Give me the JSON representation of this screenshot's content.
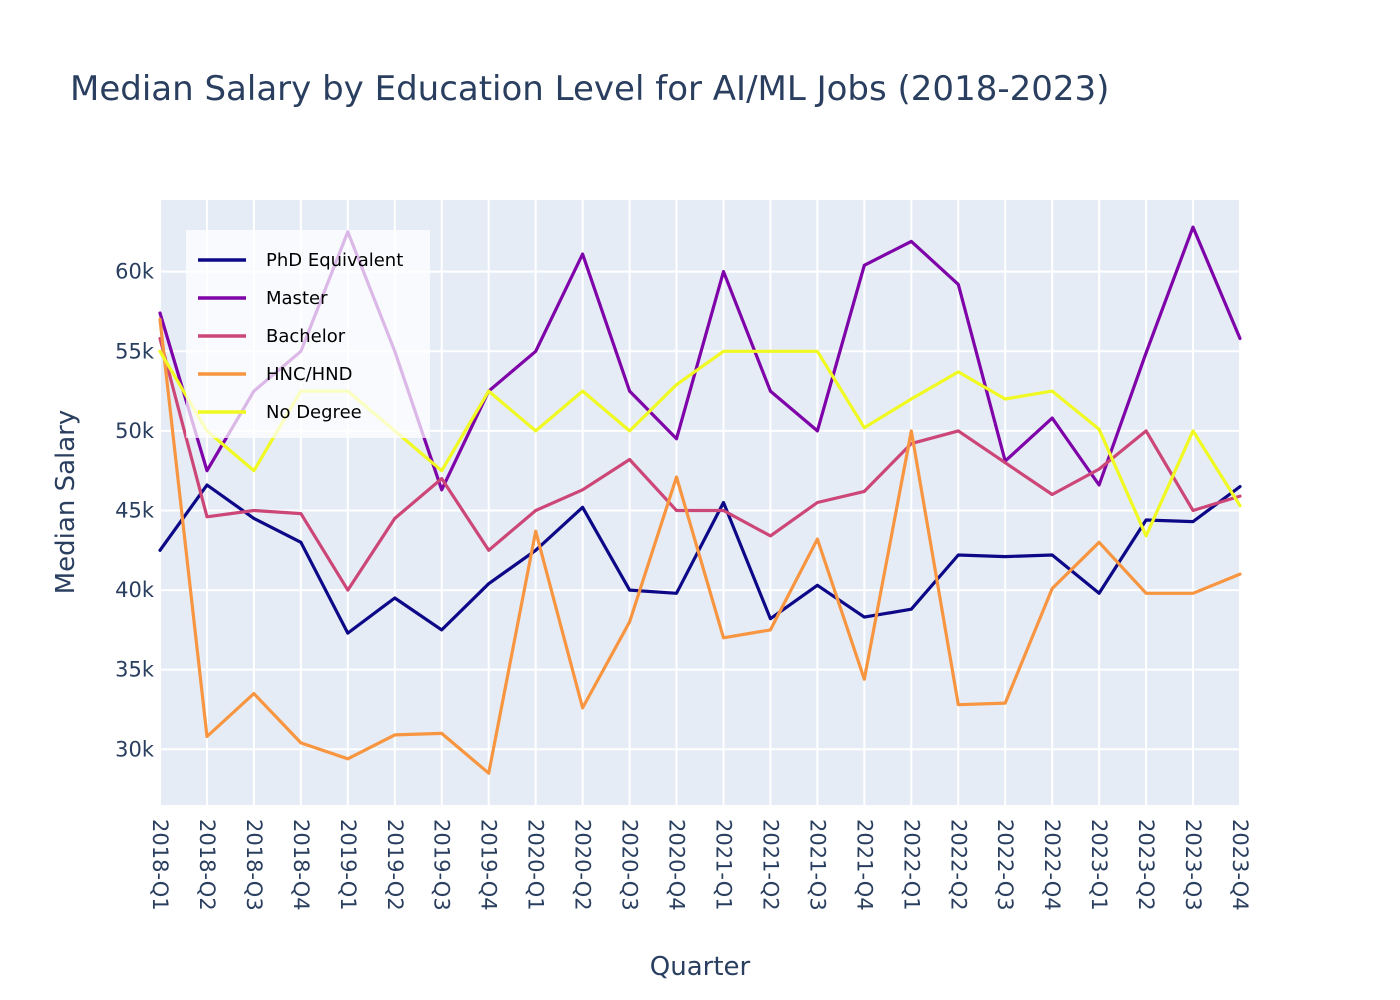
{
  "chart_data": {
    "type": "line",
    "title": "Median Salary by Education Level for AI/ML Jobs (2018-2023)",
    "xlabel": "Quarter",
    "ylabel": "Median Salary",
    "categories": [
      "2018-Q1",
      "2018-Q2",
      "2018-Q3",
      "2018-Q4",
      "2019-Q1",
      "2019-Q2",
      "2019-Q3",
      "2019-Q4",
      "2020-Q1",
      "2020-Q2",
      "2020-Q3",
      "2020-Q4",
      "2021-Q1",
      "2021-Q2",
      "2021-Q3",
      "2021-Q4",
      "2022-Q1",
      "2022-Q2",
      "2022-Q3",
      "2022-Q4",
      "2023-Q1",
      "2023-Q2",
      "2023-Q3",
      "2023-Q4"
    ],
    "ylim": [
      26500,
      64500
    ],
    "yticks": [
      30000,
      35000,
      40000,
      45000,
      50000,
      55000,
      60000
    ],
    "ytick_labels": [
      "30k",
      "35k",
      "40k",
      "45k",
      "50k",
      "55k",
      "60k"
    ],
    "grid": true,
    "legend_position": "top-left",
    "plot_background": "#e5ecf6",
    "series": [
      {
        "name": "PhD Equivalent",
        "color": "#0d0887",
        "values": [
          42500,
          46600,
          44500,
          43000,
          37300,
          39500,
          37500,
          40400,
          42500,
          45200,
          40000,
          39800,
          45500,
          38200,
          40300,
          38300,
          38800,
          42200,
          42100,
          42200,
          39800,
          44400,
          44300,
          46500
        ]
      },
      {
        "name": "Master",
        "color": "#7e03a8",
        "values": [
          57400,
          47500,
          52500,
          55000,
          62500,
          55000,
          46300,
          52500,
          55000,
          61100,
          52500,
          49500,
          60000,
          52500,
          50000,
          60400,
          61900,
          59200,
          48100,
          50800,
          46600,
          54900,
          62800,
          55800
        ]
      },
      {
        "name": "Bachelor",
        "color": "#cc4778",
        "values": [
          55800,
          44600,
          45000,
          44800,
          40000,
          44500,
          47000,
          42500,
          45000,
          46300,
          48200,
          45000,
          45000,
          43400,
          45500,
          46200,
          49200,
          50000,
          48000,
          46000,
          47600,
          50000,
          45000,
          45900
        ]
      },
      {
        "name": "HNC/HND",
        "color": "#f89540",
        "values": [
          57000,
          30800,
          33500,
          30400,
          29400,
          30900,
          31000,
          28500,
          43700,
          32600,
          38000,
          47100,
          37000,
          37500,
          43200,
          34400,
          50000,
          32800,
          32900,
          40100,
          43000,
          39800,
          39800,
          41000
        ]
      },
      {
        "name": "No Degree",
        "color": "#f0f921",
        "values": [
          55000,
          50000,
          47500,
          52500,
          52500,
          50000,
          47500,
          52500,
          50000,
          52500,
          50000,
          52900,
          55000,
          55000,
          55000,
          50200,
          52000,
          53700,
          52000,
          52500,
          50100,
          43400,
          50000,
          45300
        ]
      }
    ]
  }
}
